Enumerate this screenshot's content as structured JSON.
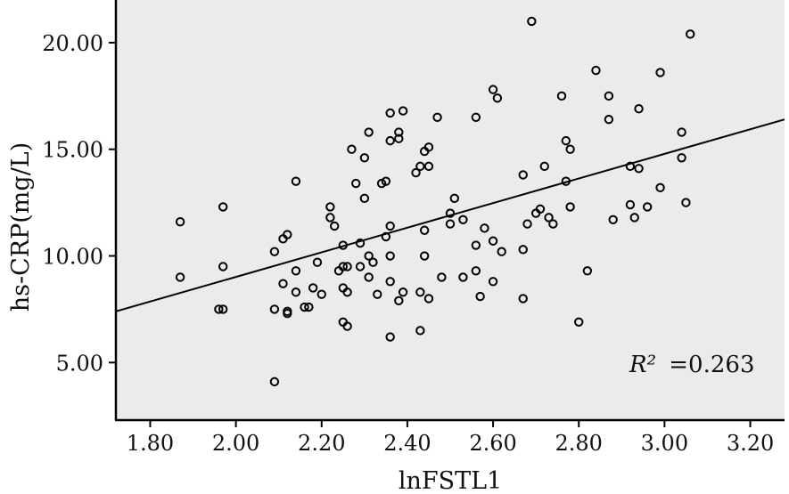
{
  "chart_data": {
    "type": "scatter",
    "title": "",
    "xlabel": "lnFSTL1",
    "ylabel": "hs-CRP(mg/L)",
    "xlim": [
      1.72,
      3.28
    ],
    "ylim": [
      2.3,
      22.0
    ],
    "xticks": [
      1.8,
      2.0,
      2.2,
      2.4,
      2.6,
      2.8,
      3.0,
      3.2
    ],
    "xtick_labels": [
      "1.80",
      "2.00",
      "2.20",
      "2.40",
      "2.60",
      "2.80",
      "3.00",
      "3.20"
    ],
    "yticks": [
      5,
      10,
      15,
      20
    ],
    "ytick_labels": [
      "5.00",
      "10.00",
      "15.00",
      "20.00"
    ],
    "grid": false,
    "background": "#ebebeb",
    "fit_line": {
      "x": [
        1.72,
        3.28
      ],
      "y": [
        7.4,
        16.4
      ]
    },
    "annotation": {
      "r2_symbol": "R²",
      "r2_value": "=0.263"
    },
    "points": [
      {
        "x": 1.87,
        "y": 11.6
      },
      {
        "x": 1.87,
        "y": 9.0
      },
      {
        "x": 1.96,
        "y": 7.5
      },
      {
        "x": 1.97,
        "y": 7.5
      },
      {
        "x": 1.97,
        "y": 12.3
      },
      {
        "x": 1.97,
        "y": 9.5
      },
      {
        "x": 2.09,
        "y": 4.1
      },
      {
        "x": 2.09,
        "y": 7.5
      },
      {
        "x": 2.09,
        "y": 10.2
      },
      {
        "x": 2.11,
        "y": 8.7
      },
      {
        "x": 2.11,
        "y": 10.8
      },
      {
        "x": 2.12,
        "y": 11.0
      },
      {
        "x": 2.12,
        "y": 7.4
      },
      {
        "x": 2.12,
        "y": 7.3
      },
      {
        "x": 2.14,
        "y": 13.5
      },
      {
        "x": 2.14,
        "y": 9.3
      },
      {
        "x": 2.14,
        "y": 8.3
      },
      {
        "x": 2.16,
        "y": 7.6
      },
      {
        "x": 2.17,
        "y": 7.6
      },
      {
        "x": 2.18,
        "y": 8.5
      },
      {
        "x": 2.19,
        "y": 9.7
      },
      {
        "x": 2.2,
        "y": 8.2
      },
      {
        "x": 2.22,
        "y": 12.3
      },
      {
        "x": 2.22,
        "y": 11.8
      },
      {
        "x": 2.23,
        "y": 11.4
      },
      {
        "x": 2.24,
        "y": 9.3
      },
      {
        "x": 2.25,
        "y": 9.5
      },
      {
        "x": 2.25,
        "y": 10.5
      },
      {
        "x": 2.25,
        "y": 8.5
      },
      {
        "x": 2.25,
        "y": 6.9
      },
      {
        "x": 2.26,
        "y": 9.5
      },
      {
        "x": 2.26,
        "y": 8.3
      },
      {
        "x": 2.26,
        "y": 6.7
      },
      {
        "x": 2.27,
        "y": 15.0
      },
      {
        "x": 2.28,
        "y": 13.4
      },
      {
        "x": 2.29,
        "y": 10.6
      },
      {
        "x": 2.29,
        "y": 9.5
      },
      {
        "x": 2.3,
        "y": 14.6
      },
      {
        "x": 2.3,
        "y": 12.7
      },
      {
        "x": 2.31,
        "y": 15.8
      },
      {
        "x": 2.31,
        "y": 10.0
      },
      {
        "x": 2.31,
        "y": 9.0
      },
      {
        "x": 2.32,
        "y": 9.7
      },
      {
        "x": 2.33,
        "y": 8.2
      },
      {
        "x": 2.34,
        "y": 13.4
      },
      {
        "x": 2.35,
        "y": 13.5
      },
      {
        "x": 2.35,
        "y": 10.9
      },
      {
        "x": 2.36,
        "y": 16.7
      },
      {
        "x": 2.36,
        "y": 15.4
      },
      {
        "x": 2.36,
        "y": 11.4
      },
      {
        "x": 2.36,
        "y": 10.0
      },
      {
        "x": 2.36,
        "y": 8.8
      },
      {
        "x": 2.36,
        "y": 6.2
      },
      {
        "x": 2.38,
        "y": 15.8
      },
      {
        "x": 2.38,
        "y": 15.5
      },
      {
        "x": 2.38,
        "y": 7.9
      },
      {
        "x": 2.39,
        "y": 16.8
      },
      {
        "x": 2.39,
        "y": 8.3
      },
      {
        "x": 2.42,
        "y": 13.9
      },
      {
        "x": 2.43,
        "y": 14.2
      },
      {
        "x": 2.43,
        "y": 6.5
      },
      {
        "x": 2.43,
        "y": 8.3
      },
      {
        "x": 2.44,
        "y": 14.9
      },
      {
        "x": 2.44,
        "y": 11.2
      },
      {
        "x": 2.44,
        "y": 10.0
      },
      {
        "x": 2.45,
        "y": 15.1
      },
      {
        "x": 2.45,
        "y": 14.2
      },
      {
        "x": 2.45,
        "y": 8.0
      },
      {
        "x": 2.47,
        "y": 16.5
      },
      {
        "x": 2.48,
        "y": 9.0
      },
      {
        "x": 2.5,
        "y": 12.0
      },
      {
        "x": 2.5,
        "y": 11.5
      },
      {
        "x": 2.51,
        "y": 12.7
      },
      {
        "x": 2.53,
        "y": 11.7
      },
      {
        "x": 2.53,
        "y": 9.0
      },
      {
        "x": 2.56,
        "y": 16.5
      },
      {
        "x": 2.56,
        "y": 10.5
      },
      {
        "x": 2.56,
        "y": 9.3
      },
      {
        "x": 2.57,
        "y": 8.1
      },
      {
        "x": 2.58,
        "y": 11.3
      },
      {
        "x": 2.6,
        "y": 17.8
      },
      {
        "x": 2.6,
        "y": 10.7
      },
      {
        "x": 2.6,
        "y": 8.8
      },
      {
        "x": 2.61,
        "y": 17.4
      },
      {
        "x": 2.62,
        "y": 10.2
      },
      {
        "x": 2.67,
        "y": 13.8
      },
      {
        "x": 2.67,
        "y": 10.3
      },
      {
        "x": 2.67,
        "y": 8.0
      },
      {
        "x": 2.68,
        "y": 11.5
      },
      {
        "x": 2.69,
        "y": 21.0
      },
      {
        "x": 2.7,
        "y": 12.0
      },
      {
        "x": 2.71,
        "y": 12.2
      },
      {
        "x": 2.72,
        "y": 14.2
      },
      {
        "x": 2.73,
        "y": 11.8
      },
      {
        "x": 2.74,
        "y": 11.5
      },
      {
        "x": 2.76,
        "y": 17.5
      },
      {
        "x": 2.77,
        "y": 15.4
      },
      {
        "x": 2.77,
        "y": 13.5
      },
      {
        "x": 2.78,
        "y": 15.0
      },
      {
        "x": 2.78,
        "y": 12.3
      },
      {
        "x": 2.8,
        "y": 6.9
      },
      {
        "x": 2.82,
        "y": 9.3
      },
      {
        "x": 2.84,
        "y": 18.7
      },
      {
        "x": 2.87,
        "y": 17.5
      },
      {
        "x": 2.87,
        "y": 16.4
      },
      {
        "x": 2.88,
        "y": 11.7
      },
      {
        "x": 2.92,
        "y": 14.2
      },
      {
        "x": 2.92,
        "y": 12.4
      },
      {
        "x": 2.93,
        "y": 11.8
      },
      {
        "x": 2.94,
        "y": 16.9
      },
      {
        "x": 2.94,
        "y": 14.1
      },
      {
        "x": 2.96,
        "y": 12.3
      },
      {
        "x": 2.99,
        "y": 18.6
      },
      {
        "x": 2.99,
        "y": 13.2
      },
      {
        "x": 3.04,
        "y": 15.8
      },
      {
        "x": 3.04,
        "y": 14.6
      },
      {
        "x": 3.05,
        "y": 12.5
      },
      {
        "x": 3.06,
        "y": 20.4
      }
    ]
  }
}
